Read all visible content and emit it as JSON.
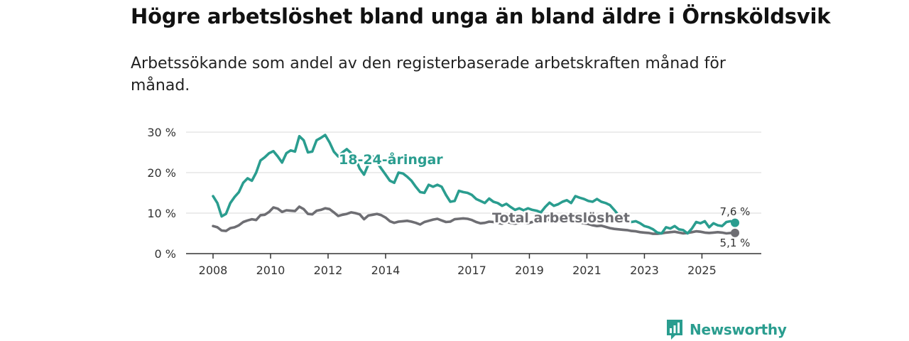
{
  "header": {
    "title": "Högre arbetslöshet bland unga än bland äldre i Örnsköldsvik",
    "subtitle": "Arbetssökande som andel av den registerbaserade arbetskraften månad för månad."
  },
  "brand": {
    "name": "Newsworthy",
    "color": "#2a9d8f"
  },
  "chart_data": {
    "type": "line",
    "title": "Högre arbetslöshet bland unga än bland äldre i Örnsköldsvik",
    "subtitle": "Arbetssökande som andel av den registerbaserade arbetskraften månad för månad.",
    "xlabel": "",
    "ylabel": "",
    "xlim": [
      2008,
      2026.3
    ],
    "ylim": [
      0,
      30
    ],
    "grid": true,
    "x_ticks": [
      2008,
      2010,
      2012,
      2014,
      2017,
      2019,
      2021,
      2023,
      2025
    ],
    "x_tick_labels": [
      "2008",
      "2010",
      "2012",
      "2014",
      "2017",
      "2019",
      "2021",
      "2023",
      "2025"
    ],
    "y_ticks": [
      0,
      10,
      20,
      30
    ],
    "y_tick_labels": [
      "0 %",
      "10 %",
      "20 %",
      "30 %"
    ],
    "series": [
      {
        "name": "18-24-åringar",
        "color": "#2a9d8f",
        "end_label": "7,6 %",
        "x": [
          2008.0,
          2008.15,
          2008.3,
          2008.45,
          2008.6,
          2008.75,
          2008.9,
          2009.05,
          2009.2,
          2009.35,
          2009.5,
          2009.65,
          2009.8,
          2009.95,
          2010.1,
          2010.25,
          2010.4,
          2010.55,
          2010.7,
          2010.85,
          2011.0,
          2011.15,
          2011.3,
          2011.45,
          2011.6,
          2011.75,
          2011.9,
          2012.05,
          2012.2,
          2012.35,
          2012.5,
          2012.65,
          2012.8,
          2012.95,
          2013.1,
          2013.25,
          2013.4,
          2013.55,
          2013.7,
          2013.85,
          2014.0,
          2014.15,
          2014.3,
          2014.45,
          2014.6,
          2014.75,
          2014.9,
          2015.05,
          2015.2,
          2015.35,
          2015.5,
          2015.65,
          2015.8,
          2015.95,
          2016.1,
          2016.25,
          2016.4,
          2016.55,
          2016.7,
          2016.85,
          2017.0,
          2017.15,
          2017.3,
          2017.45,
          2017.6,
          2017.75,
          2017.9,
          2018.05,
          2018.2,
          2018.35,
          2018.5,
          2018.65,
          2018.8,
          2018.95,
          2019.1,
          2019.25,
          2019.4,
          2019.55,
          2019.7,
          2019.85,
          2020.0,
          2020.15,
          2020.3,
          2020.45,
          2020.6,
          2020.75,
          2020.9,
          2021.05,
          2021.2,
          2021.35,
          2021.5,
          2021.65,
          2021.8,
          2021.95,
          2022.1,
          2022.25,
          2022.4,
          2022.55,
          2022.7,
          2022.85,
          2023.0,
          2023.15,
          2023.3,
          2023.45,
          2023.6,
          2023.75,
          2023.9,
          2024.05,
          2024.2,
          2024.35,
          2024.5,
          2024.65,
          2024.8,
          2024.95,
          2025.1,
          2025.25,
          2025.4,
          2025.55,
          2025.7,
          2025.85,
          2026.0,
          2026.15
        ],
        "values": [
          14.2,
          12.5,
          9.2,
          9.8,
          12.5,
          14.0,
          15.2,
          17.5,
          18.6,
          18.0,
          20.0,
          23.0,
          23.8,
          24.8,
          25.3,
          24.0,
          22.5,
          24.8,
          25.5,
          25.2,
          29.0,
          28.0,
          25.0,
          25.2,
          28.0,
          28.6,
          29.3,
          27.5,
          25.2,
          24.0,
          25.0,
          25.8,
          24.8,
          23.5,
          21.0,
          19.5,
          22.0,
          24.0,
          22.5,
          21.0,
          19.5,
          18.0,
          17.5,
          20.0,
          19.8,
          19.0,
          18.0,
          16.5,
          15.2,
          15.0,
          17.0,
          16.5,
          17.0,
          16.5,
          14.5,
          12.8,
          13.0,
          15.5,
          15.2,
          15.0,
          14.5,
          13.5,
          13.0,
          12.5,
          13.6,
          12.8,
          12.5,
          11.8,
          12.3,
          11.5,
          10.8,
          11.2,
          10.7,
          11.2,
          10.8,
          10.6,
          10.2,
          11.5,
          12.6,
          11.8,
          12.2,
          12.8,
          13.2,
          12.5,
          14.2,
          13.8,
          13.5,
          13.0,
          12.8,
          13.5,
          12.8,
          12.5,
          12.0,
          10.8,
          9.5,
          8.8,
          8.2,
          7.8,
          8.0,
          7.5,
          6.8,
          6.5,
          6.0,
          5.2,
          5.0,
          6.5,
          6.2,
          6.8,
          6.0,
          5.8,
          5.0,
          6.2,
          7.8,
          7.5,
          8.0,
          6.5,
          7.5,
          7.0,
          6.8,
          7.8,
          8.0,
          7.6
        ]
      },
      {
        "name": "Total arbetslöshet",
        "color": "#6e6e73",
        "end_label": "5,1 %",
        "x": [
          2008.0,
          2008.15,
          2008.3,
          2008.45,
          2008.6,
          2008.75,
          2008.9,
          2009.05,
          2009.2,
          2009.35,
          2009.5,
          2009.65,
          2009.8,
          2009.95,
          2010.1,
          2010.25,
          2010.4,
          2010.55,
          2010.7,
          2010.85,
          2011.0,
          2011.15,
          2011.3,
          2011.45,
          2011.6,
          2011.75,
          2011.9,
          2012.05,
          2012.2,
          2012.35,
          2012.5,
          2012.65,
          2012.8,
          2012.95,
          2013.1,
          2013.25,
          2013.4,
          2013.55,
          2013.7,
          2013.85,
          2014.0,
          2014.15,
          2014.3,
          2014.45,
          2014.6,
          2014.75,
          2014.9,
          2015.05,
          2015.2,
          2015.35,
          2015.5,
          2015.65,
          2015.8,
          2015.95,
          2016.1,
          2016.25,
          2016.4,
          2016.55,
          2016.7,
          2016.85,
          2017.0,
          2017.15,
          2017.3,
          2017.45,
          2017.6,
          2017.75,
          2017.9,
          2018.05,
          2018.2,
          2018.35,
          2018.5,
          2018.65,
          2018.8,
          2018.95,
          2019.1,
          2019.25,
          2019.4,
          2019.55,
          2019.7,
          2019.85,
          2020.0,
          2020.15,
          2020.3,
          2020.45,
          2020.6,
          2020.75,
          2020.9,
          2021.05,
          2021.2,
          2021.35,
          2021.5,
          2021.65,
          2021.8,
          2021.95,
          2022.1,
          2022.25,
          2022.4,
          2022.55,
          2022.7,
          2022.85,
          2023.0,
          2023.15,
          2023.3,
          2023.45,
          2023.6,
          2023.75,
          2023.9,
          2024.05,
          2024.2,
          2024.35,
          2024.5,
          2024.65,
          2024.8,
          2024.95,
          2025.1,
          2025.25,
          2025.4,
          2025.55,
          2025.7,
          2025.85,
          2026.0,
          2026.15
        ],
        "values": [
          6.8,
          6.5,
          5.7,
          5.6,
          6.3,
          6.5,
          7.0,
          7.8,
          8.2,
          8.5,
          8.3,
          9.5,
          9.6,
          10.3,
          11.4,
          11.1,
          10.3,
          10.7,
          10.6,
          10.5,
          11.6,
          11.0,
          9.8,
          9.7,
          10.6,
          10.8,
          11.2,
          11.0,
          10.2,
          9.3,
          9.6,
          9.8,
          10.2,
          10.0,
          9.7,
          8.5,
          9.4,
          9.6,
          9.8,
          9.5,
          8.9,
          8.0,
          7.6,
          7.9,
          8.0,
          8.1,
          7.9,
          7.6,
          7.2,
          7.8,
          8.1,
          8.4,
          8.6,
          8.2,
          7.8,
          7.9,
          8.5,
          8.6,
          8.7,
          8.6,
          8.3,
          7.8,
          7.5,
          7.6,
          7.9,
          7.8,
          7.6,
          7.4,
          7.8,
          7.6,
          7.4,
          7.6,
          7.7,
          7.5,
          7.8,
          8.0,
          7.9,
          8.2,
          8.4,
          8.1,
          7.9,
          8.3,
          8.5,
          8.0,
          7.8,
          7.7,
          7.5,
          7.3,
          7.0,
          6.8,
          6.9,
          6.6,
          6.3,
          6.1,
          6.0,
          5.9,
          5.8,
          5.6,
          5.5,
          5.3,
          5.2,
          5.1,
          4.9,
          4.9,
          5.0,
          5.2,
          5.3,
          5.4,
          5.2,
          5.0,
          5.1,
          5.3,
          5.5,
          5.4,
          5.2,
          5.1,
          5.2,
          5.3,
          5.2,
          5.0,
          5.1,
          5.1
        ]
      }
    ]
  }
}
